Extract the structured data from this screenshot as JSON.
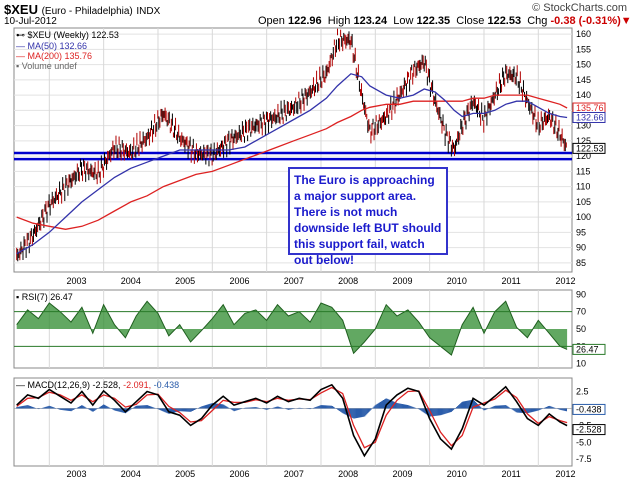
{
  "header": {
    "symbol": "$XEU",
    "name": "(Euro - Philadelphia)",
    "exchange": "INDX",
    "date": "10-Jul-2012",
    "open_label": "Open",
    "open": "122.96",
    "high_label": "High",
    "high": "123.24",
    "low_label": "Low",
    "low": "122.35",
    "close_label": "Close",
    "close": "122.53",
    "chg_label": "Chg",
    "chg": "-0.38 (-0.31%)",
    "watermark": "© StockCharts.com"
  },
  "colors": {
    "price": "#000000",
    "ma50": "#3333aa",
    "ma200": "#dd2222",
    "support": "#0000cc",
    "rsi_fill": "#2e8b2e",
    "macd_hist": "#2a5caa",
    "macd_signal": "#dd2222"
  },
  "legend": {
    "main": "$XEU (Weekly) 122.53",
    "ma50": "MA(50) 132.66",
    "ma200": "MA(200) 135.76",
    "volume": "Volume undef",
    "rsi": "RSI(7) 26.47",
    "macd_prefix": "MACD(12,26,9) -2.528,",
    "macd_signal": "-2.091,",
    "macd_hist": "-0.438"
  },
  "annotation": "The Euro is approaching a major support area. There is not much downside left BUT should this support fail, watch out below!",
  "chart_data": [
    {
      "type": "line",
      "title": "$XEU (Weekly)",
      "x": [
        2002.4,
        2002.7,
        2003.0,
        2003.3,
        2003.6,
        2003.9,
        2004.2,
        2004.5,
        2004.8,
        2005.1,
        2005.4,
        2005.7,
        2006.0,
        2006.3,
        2006.6,
        2006.9,
        2007.2,
        2007.5,
        2007.8,
        2008.1,
        2008.3,
        2008.55,
        2008.75,
        2008.9,
        2009.2,
        2009.45,
        2009.7,
        2009.9,
        2010.1,
        2010.3,
        2010.45,
        2010.6,
        2010.8,
        2011.0,
        2011.2,
        2011.4,
        2011.6,
        2011.8,
        2012.0,
        2012.2,
        2012.4,
        2012.53
      ],
      "series": [
        {
          "name": "$XEU",
          "values": [
            87,
            94,
            104,
            110,
            116,
            114,
            123,
            121,
            126,
            134,
            126,
            121,
            120,
            125,
            128,
            131,
            133,
            136,
            141,
            147,
            158,
            158,
            140,
            128,
            133,
            140,
            148,
            151,
            138,
            127,
            122,
            130,
            138,
            132,
            140,
            147,
            146,
            138,
            130,
            133,
            127,
            122.53
          ]
        },
        {
          "name": "MA(50)",
          "values": [
            88,
            91,
            95,
            100,
            105,
            109,
            113,
            116,
            118,
            120,
            122,
            122,
            122,
            122,
            123,
            126,
            129,
            132,
            135,
            139,
            143,
            147,
            146,
            143,
            140,
            139,
            140,
            142,
            141,
            138,
            135,
            133,
            134,
            134,
            135,
            137,
            138,
            138,
            136,
            134,
            133,
            132.66
          ]
        },
        {
          "name": "MA(200)",
          "values": [
            100,
            98,
            97,
            96,
            97,
            99,
            102,
            105,
            107,
            110,
            112,
            114,
            115,
            117,
            119,
            121,
            123,
            125,
            127,
            129,
            131,
            133,
            135,
            136,
            137,
            137,
            138,
            138,
            138,
            138,
            138,
            138,
            139,
            139,
            140,
            140,
            140,
            140,
            139,
            138,
            137,
            135.76
          ]
        }
      ],
      "support_lines": [
        121,
        119
      ],
      "ylim": [
        82,
        162
      ],
      "y_ticks": [
        85,
        90,
        95,
        100,
        105,
        110,
        115,
        120,
        125,
        130,
        135,
        140,
        145,
        150,
        155,
        160
      ],
      "x_ticks": [
        "2003",
        "2004",
        "2005",
        "2006",
        "2007",
        "2008",
        "2009",
        "2010",
        "2011",
        "2012"
      ],
      "price_labels": [
        "135.76",
        "132.66",
        "122.53"
      ],
      "legend": "top-left",
      "grid": true
    },
    {
      "type": "line",
      "title": "RSI(7) 26.47",
      "ylim": [
        5,
        95
      ],
      "y_ticks": [
        10,
        30,
        50,
        70,
        90
      ],
      "ref_lines": [
        70,
        30
      ],
      "x": [
        2002.4,
        2002.6,
        2002.8,
        2003.0,
        2003.2,
        2003.4,
        2003.6,
        2003.8,
        2004.0,
        2004.2,
        2004.4,
        2004.6,
        2004.8,
        2005.0,
        2005.2,
        2005.4,
        2005.6,
        2005.8,
        2006.0,
        2006.2,
        2006.4,
        2006.6,
        2006.8,
        2007.0,
        2007.2,
        2007.4,
        2007.6,
        2007.8,
        2008.0,
        2008.2,
        2008.4,
        2008.6,
        2008.8,
        2009.0,
        2009.2,
        2009.4,
        2009.6,
        2009.8,
        2010.0,
        2010.2,
        2010.4,
        2010.6,
        2010.8,
        2011.0,
        2011.2,
        2011.4,
        2011.6,
        2011.8,
        2012.0,
        2012.2,
        2012.4,
        2012.53
      ],
      "values": [
        55,
        72,
        62,
        80,
        70,
        58,
        75,
        45,
        78,
        55,
        40,
        65,
        82,
        68,
        42,
        55,
        35,
        48,
        62,
        78,
        55,
        68,
        72,
        60,
        78,
        65,
        70,
        58,
        80,
        75,
        60,
        22,
        35,
        50,
        78,
        65,
        72,
        58,
        40,
        30,
        20,
        55,
        75,
        45,
        70,
        82,
        52,
        40,
        60,
        45,
        30,
        26.47
      ],
      "current_label": "26.47"
    },
    {
      "type": "line",
      "title": "MACD(12,26,9)",
      "ylim": [
        -8.5,
        4.5
      ],
      "y_ticks": [
        -7.5,
        -5.0,
        -2.5,
        0.0,
        2.5
      ],
      "x": [
        2002.4,
        2002.6,
        2002.8,
        2003.0,
        2003.2,
        2003.4,
        2003.6,
        2003.8,
        2004.0,
        2004.2,
        2004.4,
        2004.6,
        2004.8,
        2005.0,
        2005.2,
        2005.4,
        2005.6,
        2005.8,
        2006.0,
        2006.2,
        2006.4,
        2006.6,
        2006.8,
        2007.0,
        2007.2,
        2007.4,
        2007.6,
        2007.8,
        2008.0,
        2008.2,
        2008.4,
        2008.6,
        2008.8,
        2009.0,
        2009.2,
        2009.4,
        2009.6,
        2009.8,
        2010.0,
        2010.2,
        2010.4,
        2010.6,
        2010.8,
        2011.0,
        2011.2,
        2011.4,
        2011.6,
        2011.8,
        2012.0,
        2012.2,
        2012.4,
        2012.53
      ],
      "series": [
        {
          "name": "MACD",
          "values": [
            0.5,
            2.0,
            1.5,
            2.8,
            1.8,
            0.8,
            2.5,
            0.5,
            2.6,
            1.2,
            -0.5,
            1.0,
            2.5,
            2.0,
            -0.5,
            -1.0,
            -2.5,
            -1.5,
            0.5,
            1.8,
            0.5,
            1.0,
            1.5,
            0.8,
            1.8,
            1.0,
            1.5,
            1.2,
            2.8,
            3.5,
            1.5,
            -4.0,
            -7.0,
            -4.5,
            0.5,
            2.0,
            3.0,
            2.5,
            -1.5,
            -4.5,
            -6.0,
            -3.0,
            1.5,
            0.5,
            1.8,
            3.2,
            1.0,
            -1.5,
            -2.5,
            -0.8,
            -2.0,
            -2.528
          ]
        },
        {
          "name": "Signal",
          "values": [
            0.3,
            1.5,
            1.6,
            2.4,
            2.0,
            1.2,
            2.0,
            1.0,
            2.0,
            1.5,
            0.2,
            0.6,
            2.0,
            2.1,
            0.3,
            -0.6,
            -2.0,
            -1.8,
            -0.3,
            1.2,
            0.9,
            0.9,
            1.3,
            1.0,
            1.5,
            1.2,
            1.4,
            1.3,
            2.3,
            3.1,
            2.2,
            -2.5,
            -5.8,
            -5.0,
            -1.0,
            1.2,
            2.5,
            2.6,
            -0.3,
            -3.5,
            -5.5,
            -4.0,
            0.2,
            0.8,
            1.4,
            2.7,
            1.6,
            -0.8,
            -2.2,
            -1.2,
            -1.8,
            -2.091
          ]
        },
        {
          "name": "Histogram",
          "values": [
            0.2,
            0.5,
            -0.1,
            0.4,
            -0.2,
            -0.4,
            0.5,
            -0.5,
            0.6,
            -0.3,
            -0.7,
            0.4,
            0.5,
            -0.1,
            -0.8,
            -0.4,
            -0.5,
            0.3,
            0.8,
            0.6,
            -0.4,
            0.1,
            0.2,
            -0.2,
            0.3,
            -0.2,
            0.1,
            -0.1,
            0.5,
            0.4,
            -0.7,
            -1.5,
            -1.2,
            0.5,
            1.5,
            0.8,
            0.5,
            -0.1,
            -1.2,
            -1.0,
            -0.5,
            1.0,
            1.3,
            -0.3,
            0.4,
            0.5,
            -0.6,
            -0.7,
            -0.3,
            0.4,
            -0.2,
            -0.438
          ]
        }
      ],
      "current_labels": [
        "-0.438",
        "-2.528"
      ]
    }
  ]
}
